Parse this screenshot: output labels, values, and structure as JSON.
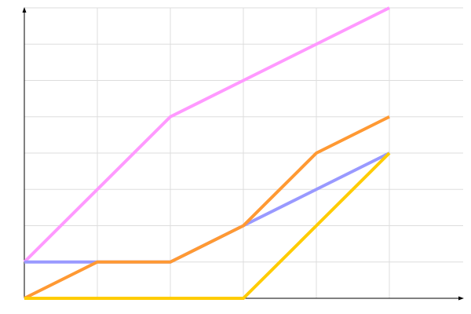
{
  "chart_data": {
    "type": "line",
    "title": "",
    "xlabel": "",
    "ylabel": "",
    "x": [
      0,
      1,
      2,
      3,
      4,
      5
    ],
    "xlim": [
      0,
      6
    ],
    "ylim": [
      0,
      8
    ],
    "grid": true,
    "legend": "none",
    "series": [
      {
        "color": "#ff99ff",
        "values": [
          1,
          3,
          5,
          6,
          7,
          8
        ]
      },
      {
        "color": "#9999ff",
        "values": [
          1,
          1,
          1,
          2,
          3,
          4
        ]
      },
      {
        "color": "#ff9933",
        "values": [
          0,
          1,
          1,
          2,
          4,
          5
        ]
      },
      {
        "color": "#ffcc00",
        "values": [
          0,
          0,
          0,
          0,
          2,
          4
        ]
      }
    ]
  }
}
